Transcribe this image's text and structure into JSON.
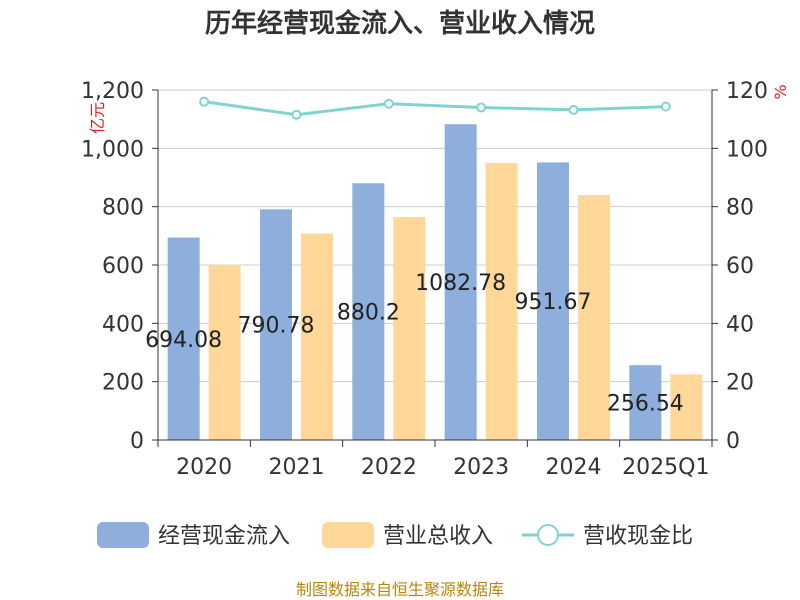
{
  "title": "历年经营现金流入、营业收入情况",
  "left_unit": "亿元",
  "right_unit": "%",
  "source": "制图数据来自恒生聚源数据库",
  "colors": {
    "cash_inflow": "#8eaedb",
    "revenue": "#ffd899",
    "ratio": "#7fd3d3",
    "gridline": "#cccccc",
    "axis": "#333333"
  },
  "chart_data": {
    "type": "bar",
    "categories": [
      "2020",
      "2021",
      "2022",
      "2023",
      "2024",
      "2025Q1"
    ],
    "series": [
      {
        "name": "经营现金流入",
        "type": "bar",
        "axis": "left",
        "values": [
          694.08,
          790.78,
          880.21,
          1082.78,
          951.67,
          256.54
        ],
        "labels": [
          "694.08",
          "790.78",
          "880.2",
          "1082.78",
          "951.67",
          "256.54"
        ]
      },
      {
        "name": "营业总收入",
        "type": "bar",
        "axis": "left",
        "values": [
          600,
          708,
          764,
          950,
          840,
          225
        ]
      },
      {
        "name": "营收现金比",
        "type": "line",
        "axis": "right",
        "values": [
          116,
          111.5,
          115.3,
          114,
          113.2,
          114.3
        ]
      }
    ],
    "ylim": [
      0,
      1200
    ],
    "y_ticks": [
      "0",
      "200",
      "400",
      "600",
      "800",
      "1,000",
      "1,200"
    ],
    "y2lim": [
      0,
      120
    ],
    "y2_ticks": [
      "0",
      "20",
      "40",
      "60",
      "80",
      "100",
      "120"
    ],
    "grid": true,
    "legend_position": "bottom"
  }
}
